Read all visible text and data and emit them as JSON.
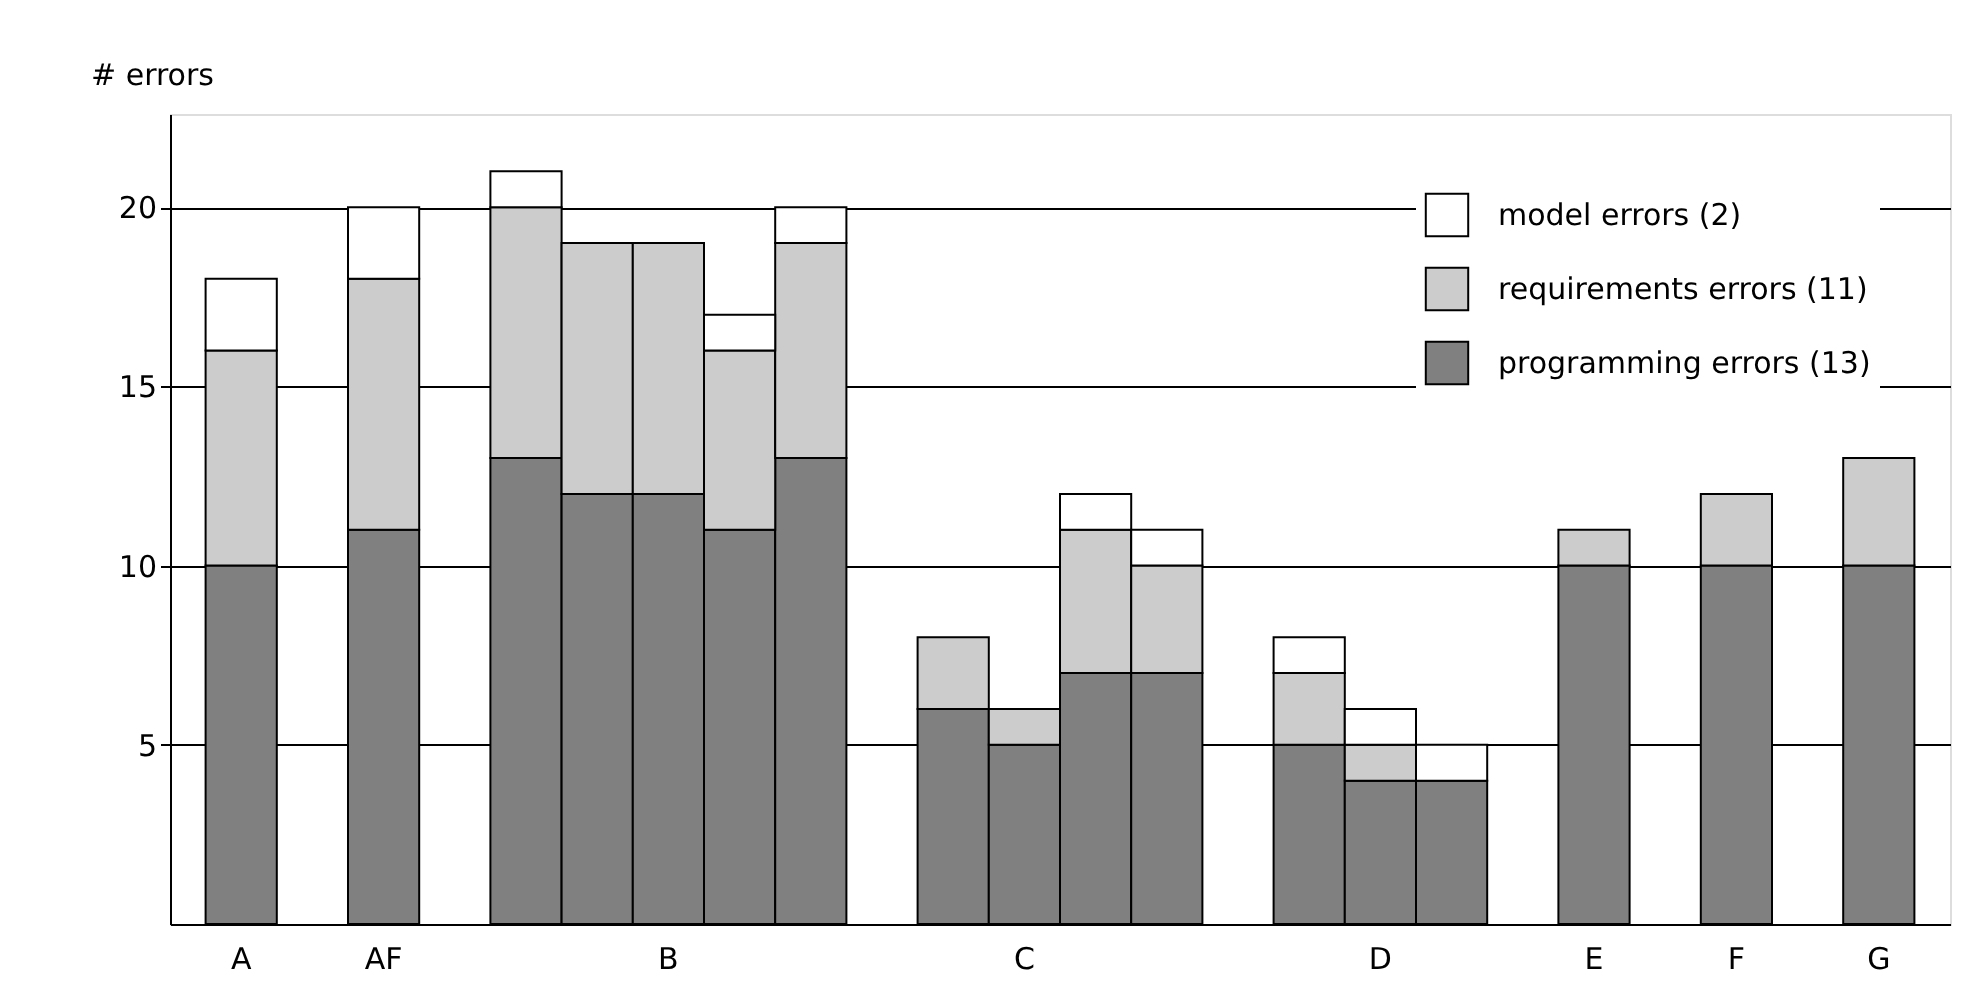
{
  "chart_data": {
    "type": "bar",
    "stacked": true,
    "ylabel": "# errors",
    "categories": [
      "A",
      null,
      "AF",
      null,
      null,
      null,
      "B",
      null,
      null,
      null,
      null,
      "C",
      null,
      null,
      null,
      null,
      "D",
      null,
      null,
      "E",
      null,
      "F",
      null,
      "G"
    ],
    "ylim": [
      0,
      22.6
    ],
    "yticks": [
      5,
      10,
      15,
      20
    ],
    "grid": "y",
    "legend": "top right",
    "series": [
      {
        "name": "programming errors (13)",
        "color": "#808080",
        "values": [
          10,
          null,
          11,
          null,
          13,
          12,
          12,
          11,
          13,
          null,
          6,
          5,
          7,
          7,
          null,
          5,
          4,
          4,
          null,
          10,
          null,
          10,
          null,
          10
        ]
      },
      {
        "name": "requirements errors (11)",
        "color": "#cccccc",
        "values": [
          6,
          null,
          7,
          null,
          7,
          7,
          7,
          5,
          6,
          null,
          2,
          1,
          4,
          3,
          null,
          2,
          1,
          null,
          null,
          1,
          null,
          2,
          null,
          3
        ]
      },
      {
        "name": "model errors (2)",
        "color": "#ffffff",
        "values": [
          2,
          null,
          2,
          null,
          1,
          null,
          null,
          1,
          1,
          null,
          null,
          null,
          1,
          1,
          null,
          1,
          1,
          1,
          null,
          null,
          null,
          null,
          null,
          null
        ]
      }
    ]
  }
}
